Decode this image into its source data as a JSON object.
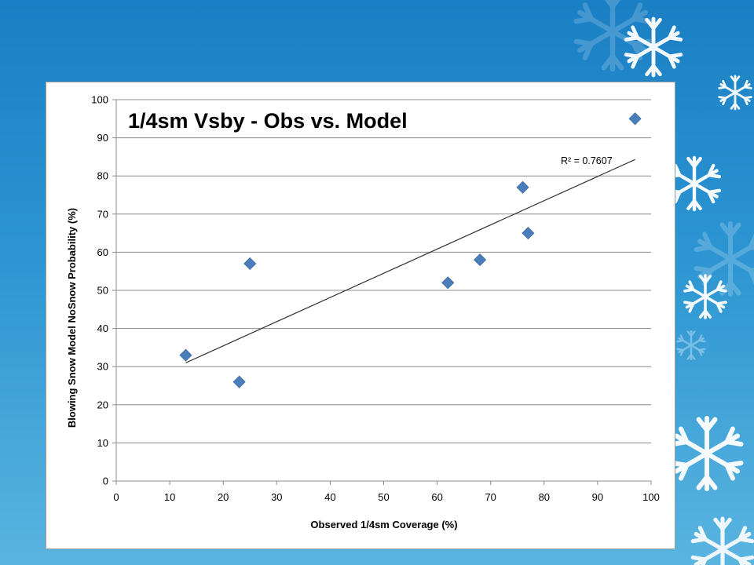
{
  "slide": {
    "background_colors": [
      "#1a7fc4",
      "#5ab4e0"
    ],
    "decoration_icon": "snowflake-icon"
  },
  "chart_data": {
    "type": "scatter",
    "title": "1/4sm Vsby - Obs vs. Model",
    "xlabel": "Observed 1/4sm Coverage (%)",
    "ylabel": "Blowing Snow Model NoSnow Probability  (%)",
    "xlim": [
      0,
      100
    ],
    "ylim": [
      0,
      100
    ],
    "xticks": [
      "0",
      "10",
      "20",
      "30",
      "40",
      "50",
      "60",
      "70",
      "80",
      "90",
      "100"
    ],
    "yticks": [
      "0",
      "10",
      "20",
      "30",
      "40",
      "50",
      "60",
      "70",
      "80",
      "90",
      "100"
    ],
    "grid": "horizontal",
    "marker": "diamond",
    "marker_color": "#4a7ebb",
    "series": [
      {
        "x": [
          13,
          23,
          25,
          62,
          68,
          76,
          77,
          97
        ],
        "y": [
          33,
          26,
          57,
          52,
          58,
          77,
          65,
          95
        ]
      }
    ],
    "trendline": {
      "type": "linear",
      "label": "R² = 0.7607",
      "x_range": [
        13,
        97
      ],
      "y_range": [
        31,
        84.3
      ],
      "color": "#333333"
    }
  }
}
